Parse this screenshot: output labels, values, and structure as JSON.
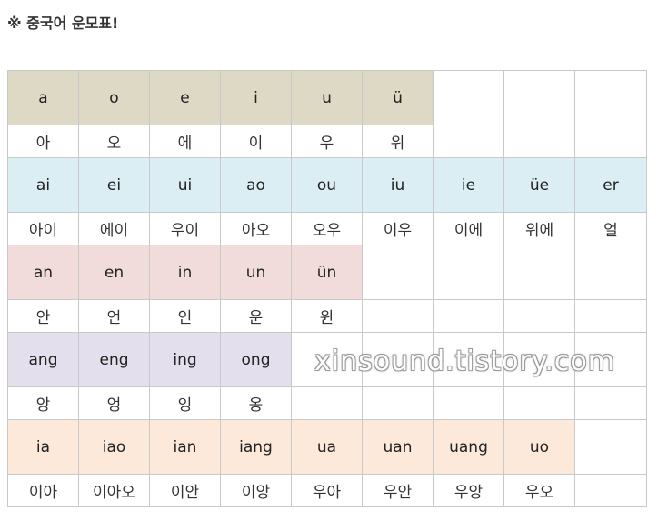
{
  "title": "※ 중국어 운모표!",
  "watermark": "xinsound.tistory.com",
  "colors": {
    "group1": "#ddd9c4",
    "group2": "#dbeef3",
    "group3": "#f2dcdb",
    "group4": "#e4dfec",
    "group5": "#fde9d9",
    "border": "#c9c9c9"
  },
  "groups": [
    {
      "color": "#ddd9c4",
      "latin": [
        "a",
        "o",
        "e",
        "i",
        "u",
        "ü",
        "",
        "",
        ""
      ],
      "hangul": [
        "아",
        "오",
        "에",
        "이",
        "우",
        "위",
        "",
        "",
        ""
      ]
    },
    {
      "color": "#dbeef3",
      "latin": [
        "ai",
        "ei",
        "ui",
        "ao",
        "ou",
        "iu",
        "ie",
        "üe",
        "er"
      ],
      "hangul": [
        "아이",
        "에이",
        "우이",
        "아오",
        "오우",
        "이우",
        "이에",
        "위에",
        "얼"
      ]
    },
    {
      "color": "#f2dcdb",
      "latin": [
        "an",
        "en",
        "in",
        "un",
        "ün",
        "",
        "",
        "",
        ""
      ],
      "hangul": [
        "안",
        "언",
        "인",
        "운",
        "윈",
        "",
        "",
        "",
        ""
      ]
    },
    {
      "color": "#e4dfec",
      "latin": [
        "ang",
        "eng",
        "ing",
        "ong",
        "",
        "",
        "",
        "",
        ""
      ],
      "hangul": [
        "앙",
        "엉",
        "잉",
        "옹",
        "",
        "",
        "",
        "",
        ""
      ]
    },
    {
      "color": "#fde9d9",
      "latin": [
        "ia",
        "iao",
        "ian",
        "iang",
        "ua",
        "uan",
        "uang",
        "uo",
        ""
      ],
      "hangul": [
        "이아",
        "이아오",
        "이안",
        "이앙",
        "우아",
        "우안",
        "우앙",
        "우오",
        ""
      ]
    }
  ]
}
